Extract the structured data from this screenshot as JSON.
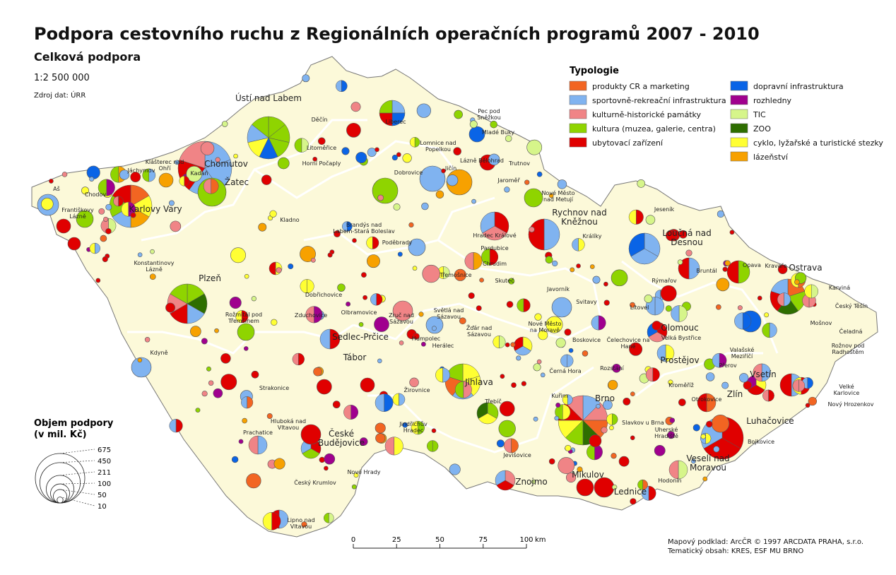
{
  "title": "Podpora cestovního ruchu z Regionálních operačních programů 2007 - 2010",
  "subtitle": "Celková podpora",
  "scale_text": "1:2 500 000",
  "source": "Zdroj dat: ÚRR",
  "legend": {
    "title": "Typologie",
    "items": [
      {
        "label": "produkty CR a marketing",
        "color": "#f26522"
      },
      {
        "label": "sportovně-rekreační infrastruktura",
        "color": "#80b3f0"
      },
      {
        "label": "kulturně-historické památky",
        "color": "#f08486"
      },
      {
        "label": "kultura (muzea, galerie, centra)",
        "color": "#8fd400"
      },
      {
        "label": "ubytovací zařízení",
        "color": "#e00000"
      },
      {
        "label": "dopravní infrastruktura",
        "color": "#0a64e6"
      },
      {
        "label": "rozhledny",
        "color": "#a0008e"
      },
      {
        "label": "TIC",
        "color": "#d6f58a"
      },
      {
        "label": "ZOO",
        "color": "#2e6e00"
      },
      {
        "label": "cyklo, lyžařské a turistické stezky",
        "color": "#ffff33"
      },
      {
        "label": "lázeňství",
        "color": "#f7a100"
      }
    ]
  },
  "size_legend": {
    "title": "Objem podpory",
    "subtitle": "(v mil. Kč)",
    "values": [
      675,
      450,
      211,
      100,
      50,
      10
    ]
  },
  "scale_bar": {
    "ticks": [
      0,
      25,
      50,
      75,
      100
    ],
    "unit": "km"
  },
  "credits": [
    "Mapový podklad: ArcČR © 1997 ARCDATA PRAHA, s.r.o.",
    "Tematický obsah: KRES, ESF MU BRNO"
  ],
  "cities": [
    "Ústí nad Labem",
    "Chomutov",
    "Žatec",
    "Kadaň",
    "Karlovy Vary",
    "Chodov",
    "Aš",
    "Františkovy Lázně",
    "Jáchymov",
    "Klášterec nad Ohří",
    "Děčín",
    "Liberec",
    "Ostrava",
    "Litoměřice",
    "Horní Počaply",
    "Lomnice nad Popelkou",
    "Jičín",
    "Lázně Bělohrad",
    "Pec pod Sněžkou",
    "Mladé Buky",
    "Trutnov",
    "Dobrovice",
    "Jaroměř",
    "Nové Město nad Metují",
    "Hradec Králové",
    "Rychnov nad Kněžnou",
    "Kladno",
    "Brandýs nad Labem-Stará Boleslav",
    "Poděbrady",
    "Pardubice",
    "Chrudim",
    "Králíky",
    "Jeseník",
    "Loučná nad Desnou",
    "Bruntál",
    "Opava",
    "Kravaře",
    "Karviná",
    "Český Těšín",
    "Plzeň",
    "Konstantinovy Lázně",
    "Dobřichovice",
    "Rožmitál pod Třemšínem",
    "Zduchovice",
    "Olbramovice",
    "Sedlec-Prčice",
    "Zruč nad Sázavou",
    "Světlá nad Sázavou",
    "Třemošnice",
    "Skuteč",
    "Javorník",
    "Svitavy",
    "Rýmařov",
    "Litovel",
    "Olomouc",
    "Mošnov",
    "Čeladná",
    "Rožnov pod Radhoštěm",
    "Kdyně",
    "Tábor",
    "Humpolec",
    "Herálec",
    "Žďár nad Sázavou",
    "Nové Město na Moravě",
    "Boskovice",
    "Čelechovice na Hané",
    "Velká Bystřice",
    "Prostějov",
    "Přerov",
    "Valašské Meziříčí",
    "Vsetín",
    "Velké Karlovice",
    "Nový Hrozenkov",
    "Jihlava",
    "Žirovnice",
    "Strakonice",
    "Černá Hora",
    "Rozstání",
    "Kroměříž",
    "Zlín",
    "Otrokovice",
    "Luhačovice",
    "Třebíč",
    "Kuřim",
    "Brno",
    "Slavkov u Brna",
    "Uherské Hradiště",
    "Bojkovice",
    "Hluboká nad Vltavou",
    "České Budějovice",
    "Prachatice",
    "Jindřichův Hradec",
    "Veselí nad Moravou",
    "Jevišovice",
    "Znojmo",
    "Mikulov",
    "Lednice",
    "Hodonín",
    "Nové Hrady",
    "Český Krumlov",
    "Lipno nad Vltavou"
  ]
}
